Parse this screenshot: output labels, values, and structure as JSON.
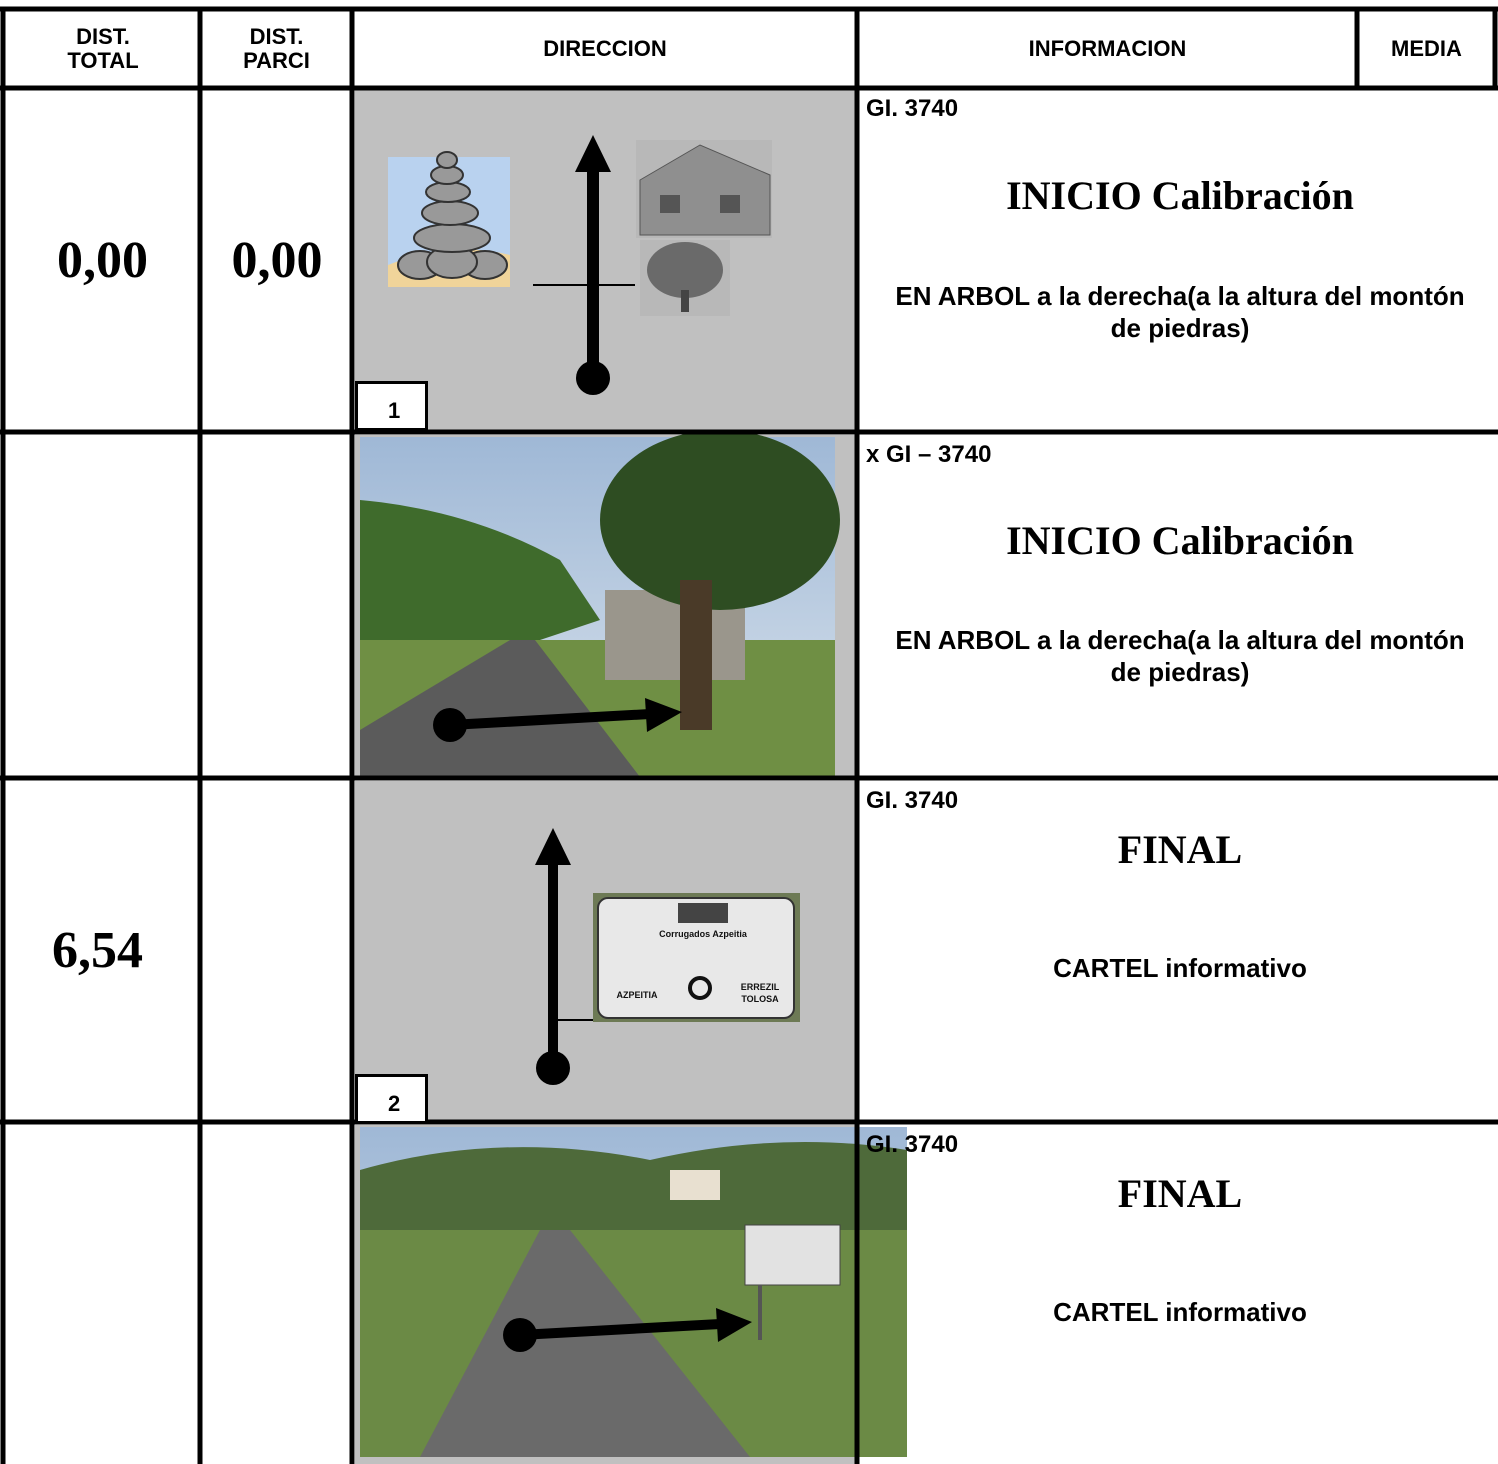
{
  "table": {
    "headers": [
      "DIST. TOTAL",
      "DIST. PARCI",
      "DIRECCION",
      "INFORMACION",
      "MEDIA"
    ],
    "rows": [
      {
        "dist_total": "0,00",
        "dist_parci": "0,00",
        "box_number": "1",
        "road": "GI. 3740",
        "title": "INICIO Calibración",
        "note": "EN ARBOL a la derecha(a la altura del montón de piedras)"
      },
      {
        "road": "x GI – 3740",
        "title": "INICIO Calibración",
        "note": "EN ARBOL a la derecha(a la altura del montón de piedras)"
      },
      {
        "dist_total": "6,54",
        "box_number": "2",
        "road": "GI. 3740",
        "title": "FINAL",
        "note": "CARTEL informativo",
        "sign": {
          "top": "Corrugados Azpeitia",
          "left": "AZPEITIA",
          "right_1": "ERREZIL",
          "right_2": "TOLOSA"
        }
      },
      {
        "road": "GI. 3740",
        "title": "FINAL",
        "note": "CARTEL informativo"
      }
    ]
  }
}
